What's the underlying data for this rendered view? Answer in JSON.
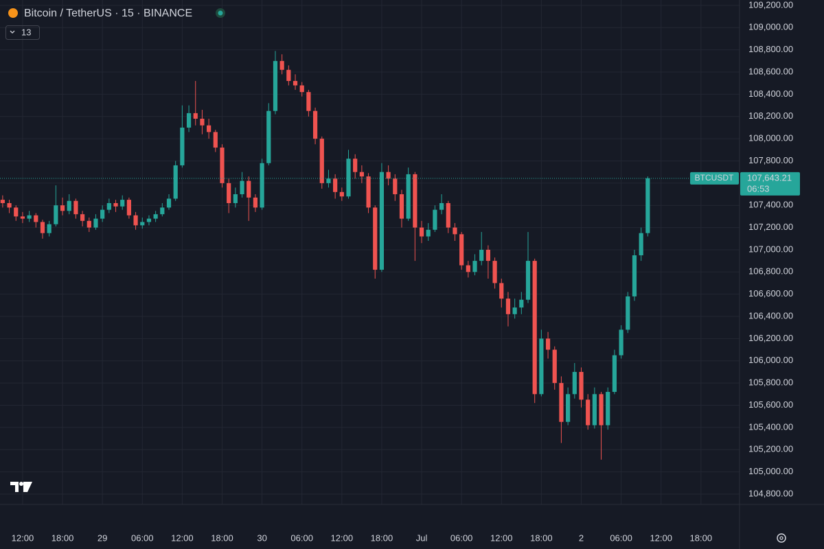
{
  "chart_data": {
    "type": "candlestick",
    "title": "Bitcoin / TetherUS · 15 · BINANCE",
    "indicator_count": "13",
    "price_tag": {
      "symbol": "BTCUSDT",
      "label": "107,643.21",
      "countdown": "06:53"
    },
    "up_color": "#26a69a",
    "down_color": "#ef5350",
    "grid": true,
    "x": [
      9,
      10,
      11,
      12,
      13,
      14,
      15,
      16,
      17,
      18,
      19,
      20,
      21,
      22,
      23,
      24,
      25,
      26,
      27,
      28,
      29,
      30,
      31,
      32,
      33,
      34,
      35,
      36,
      37,
      38,
      39,
      40,
      41,
      42,
      43,
      44,
      45,
      46,
      47,
      48,
      49,
      50,
      51,
      52,
      53,
      54,
      55,
      56,
      57,
      58,
      59,
      60,
      61,
      62,
      63,
      64,
      65,
      66,
      67,
      68,
      69,
      70,
      71,
      72,
      73,
      74,
      75,
      76,
      77,
      78,
      79,
      80,
      81,
      82,
      83,
      84,
      85,
      86,
      87,
      88,
      89,
      90,
      91,
      92,
      93,
      94,
      95,
      96,
      97,
      98,
      99,
      100,
      101,
      102,
      103,
      104,
      105,
      106
    ],
    "open": [
      107450,
      107420,
      107380,
      107300,
      107280,
      107310,
      107250,
      107150,
      107230,
      107400,
      107350,
      107440,
      107320,
      107260,
      107200,
      107280,
      107360,
      107420,
      107390,
      107450,
      107310,
      107220,
      107250,
      107280,
      107320,
      107380,
      107460,
      107760,
      108100,
      108230,
      108180,
      108120,
      108060,
      107920,
      107600,
      107420,
      107500,
      107620,
      107470,
      107380,
      107780,
      108250,
      108700,
      108620,
      108520,
      108480,
      108420,
      108250,
      108000,
      107600,
      107640,
      107520,
      107480,
      107820,
      107700,
      107660,
      107380,
      106820,
      107700,
      107640,
      107500,
      107280,
      107680,
      107200,
      107120,
      107180,
      107360,
      107420,
      107200,
      107140,
      106860,
      106800,
      106900,
      107000,
      106900,
      106700,
      106560,
      106420,
      106480,
      106550,
      106900,
      105700,
      106200,
      106100,
      105800,
      105450,
      105700,
      105900,
      105650,
      105420,
      105700,
      105420,
      105720,
      106050,
      106280,
      106580,
      106950,
      107150
    ],
    "high": [
      107490,
      107450,
      107400,
      107340,
      107350,
      107330,
      107270,
      107260,
      107580,
      107470,
      107500,
      107460,
      107350,
      107290,
      107320,
      107400,
      107460,
      107450,
      107490,
      107470,
      107340,
      107290,
      107310,
      107350,
      107420,
      107500,
      107800,
      108300,
      108300,
      108520,
      108260,
      108180,
      108080,
      107950,
      107640,
      107560,
      107700,
      107660,
      107500,
      107820,
      108320,
      108790,
      108760,
      108660,
      108580,
      108510,
      108440,
      108280,
      108020,
      107720,
      107680,
      107560,
      107900,
      107860,
      107760,
      107690,
      107400,
      107780,
      107760,
      107680,
      107540,
      107740,
      107700,
      107260,
      107240,
      107400,
      107500,
      107440,
      107240,
      107160,
      106900,
      106960,
      107160,
      107040,
      106930,
      106740,
      106620,
      106560,
      106620,
      107160,
      106920,
      106280,
      106260,
      106130,
      105860,
      105760,
      105980,
      105940,
      105700,
      105760,
      105720,
      105760,
      106100,
      106320,
      106620,
      107000,
      107200,
      107660
    ],
    "low": [
      107380,
      107330,
      107260,
      107240,
      107250,
      107200,
      107100,
      107120,
      107210,
      107310,
      107320,
      107280,
      107210,
      107160,
      107180,
      107250,
      107330,
      107340,
      107360,
      107280,
      107180,
      107190,
      107220,
      107250,
      107300,
      107360,
      107440,
      107740,
      108060,
      108120,
      108040,
      108000,
      107880,
      107560,
      107330,
      107380,
      107470,
      107260,
      107340,
      107360,
      107760,
      108220,
      108580,
      108480,
      108440,
      108380,
      108200,
      107950,
      107550,
      107560,
      107460,
      107440,
      107460,
      107640,
      107600,
      107330,
      106740,
      106800,
      107580,
      107440,
      107200,
      107260,
      106900,
      107060,
      107080,
      107160,
      107320,
      107150,
      107080,
      106820,
      106750,
      106770,
      106860,
      106740,
      106650,
      106480,
      106310,
      106380,
      106420,
      106520,
      105620,
      105680,
      106020,
      105740,
      105260,
      105420,
      105660,
      105580,
      105380,
      105390,
      105110,
      105380,
      105700,
      106020,
      106250,
      106540,
      106900,
      107120
    ],
    "close": [
      107420,
      107380,
      107300,
      107280,
      107310,
      107250,
      107150,
      107230,
      107400,
      107350,
      107440,
      107320,
      107260,
      107200,
      107280,
      107360,
      107420,
      107390,
      107450,
      107310,
      107220,
      107250,
      107280,
      107320,
      107380,
      107460,
      107760,
      108100,
      108230,
      108180,
      108120,
      108060,
      107920,
      107600,
      107420,
      107500,
      107620,
      107470,
      107380,
      107780,
      108250,
      108700,
      108620,
      108520,
      108480,
      108420,
      108250,
      108000,
      107600,
      107640,
      107520,
      107480,
      107820,
      107700,
      107660,
      107380,
      106820,
      107700,
      107640,
      107500,
      107280,
      107680,
      107200,
      107120,
      107180,
      107360,
      107420,
      107200,
      107140,
      106860,
      106800,
      106900,
      107000,
      106900,
      106700,
      106560,
      106420,
      106480,
      106550,
      106900,
      105700,
      106200,
      106100,
      105800,
      105450,
      105700,
      105900,
      105650,
      105420,
      105700,
      105420,
      105720,
      106050,
      106280,
      106580,
      106950,
      107150,
      107643.21
    ],
    "xlim": [
      8.6,
      119.8
    ],
    "xticks": [
      {
        "value": 12,
        "label": "12:00"
      },
      {
        "value": 18,
        "label": "18:00"
      },
      {
        "value": 24,
        "label": "29"
      },
      {
        "value": 30,
        "label": "06:00"
      },
      {
        "value": 36,
        "label": "12:00"
      },
      {
        "value": 42,
        "label": "18:00"
      },
      {
        "value": 48,
        "label": "30"
      },
      {
        "value": 54,
        "label": "06:00"
      },
      {
        "value": 60,
        "label": "12:00"
      },
      {
        "value": 66,
        "label": "18:00"
      },
      {
        "value": 72,
        "label": "Jul"
      },
      {
        "value": 78,
        "label": "06:00"
      },
      {
        "value": 84,
        "label": "12:00"
      },
      {
        "value": 90,
        "label": "18:00"
      },
      {
        "value": 96,
        "label": "2"
      },
      {
        "value": 102,
        "label": "06:00"
      },
      {
        "value": 108,
        "label": "12:00"
      },
      {
        "value": 114,
        "label": "18:00"
      }
    ],
    "ylim": [
      104707,
      109249
    ],
    "yticks": [
      {
        "value": 104800,
        "label": "104,800.00"
      },
      {
        "value": 105000,
        "label": "105,000.00"
      },
      {
        "value": 105200,
        "label": "105,200.00"
      },
      {
        "value": 105400,
        "label": "105,400.00"
      },
      {
        "value": 105600,
        "label": "105,600.00"
      },
      {
        "value": 105800,
        "label": "105,800.00"
      },
      {
        "value": 106000,
        "label": "106,000.00"
      },
      {
        "value": 106200,
        "label": "106,200.00"
      },
      {
        "value": 106400,
        "label": "106,400.00"
      },
      {
        "value": 106600,
        "label": "106,600.00"
      },
      {
        "value": 106800,
        "label": "106,800.00"
      },
      {
        "value": 107000,
        "label": "107,000.00"
      },
      {
        "value": 107200,
        "label": "107,200.00"
      },
      {
        "value": 107400,
        "label": "107,400.00"
      },
      {
        "value": 107600,
        "label": "107,600.00"
      },
      {
        "value": 107800,
        "label": "107,800.00"
      },
      {
        "value": 108000,
        "label": "108,000.00"
      },
      {
        "value": 108200,
        "label": "108,200.00"
      },
      {
        "value": 108400,
        "label": "108,400.00"
      },
      {
        "value": 108600,
        "label": "108,600.00"
      },
      {
        "value": 108800,
        "label": "108,800.00"
      },
      {
        "value": 109000,
        "label": "109,000.00"
      },
      {
        "value": 109200,
        "label": "109,200.00"
      }
    ]
  }
}
